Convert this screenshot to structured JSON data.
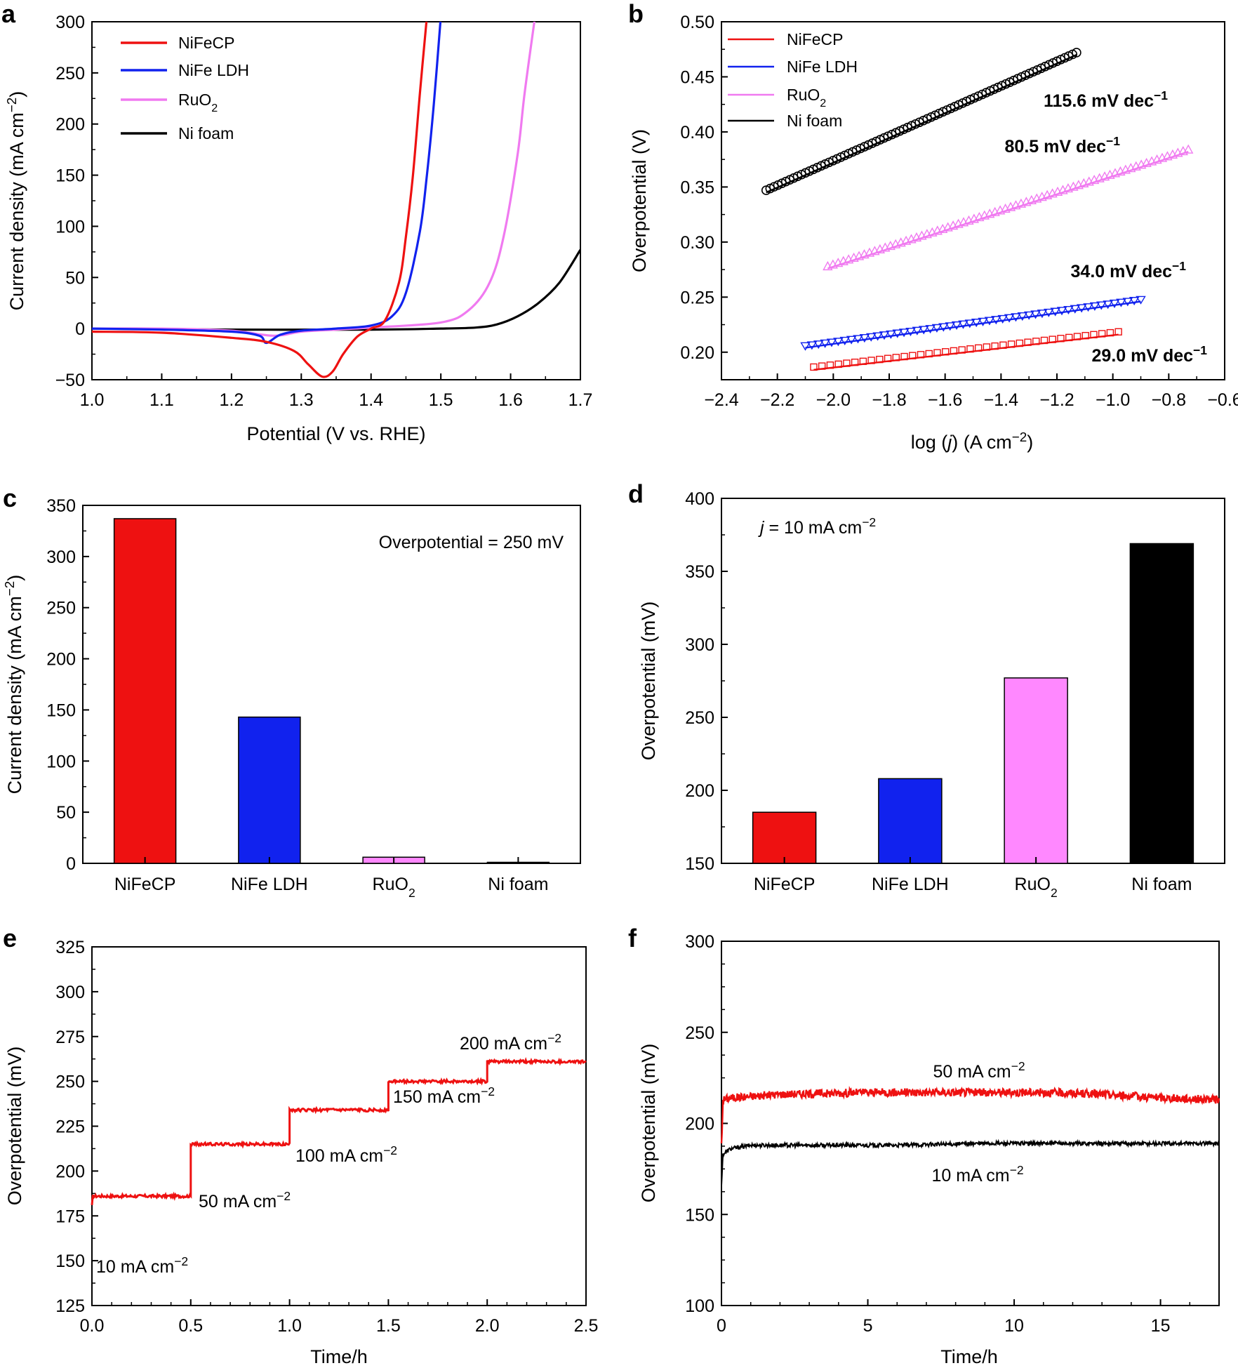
{
  "panel_letters": [
    "a",
    "b",
    "c",
    "d",
    "e",
    "f"
  ],
  "legend_labels": [
    "NiFeCP",
    "NiFe LDH",
    "RuO₂",
    "Ni foam"
  ],
  "colors": {
    "nifecp": "#ee1111",
    "nife_ldh": "#1122ee",
    "ruo2": "#f07af0",
    "ni_foam": "#000000",
    "tafel_nifecp_label": "#e53030",
    "tafel_ldh_label": "#2233aa",
    "tafel_ruo2_label": "#e070e0",
    "bar_ruo2": "#ff88ff"
  },
  "chart_data": [
    {
      "id": "a",
      "type": "line",
      "xlabel": "Potential (V vs. RHE)",
      "ylabel": "Current density (mA cm⁻²)",
      "xlim": [
        1.0,
        1.7
      ],
      "ylim": [
        -50,
        300
      ],
      "xticks": [
        "1.0",
        "1.1",
        "1.2",
        "1.3",
        "1.4",
        "1.5",
        "1.6",
        "1.7"
      ],
      "yticks": [
        "−50",
        "0",
        "50",
        "100",
        "150",
        "200",
        "250",
        "300"
      ],
      "series": [
        {
          "name": "NiFeCP",
          "x": [
            1.0,
            1.1,
            1.2,
            1.25,
            1.29,
            1.31,
            1.33,
            1.345,
            1.36,
            1.38,
            1.4,
            1.42,
            1.44,
            1.45,
            1.46,
            1.47,
            1.48
          ],
          "y": [
            -3,
            -4,
            -9,
            -13,
            -22,
            -35,
            -47,
            -42,
            -25,
            -8,
            0,
            8,
            45,
            90,
            150,
            230,
            305
          ]
        },
        {
          "name": "NiFe LDH",
          "x": [
            1.0,
            1.1,
            1.2,
            1.24,
            1.25,
            1.27,
            1.3,
            1.35,
            1.4,
            1.43,
            1.45,
            1.47,
            1.48,
            1.49,
            1.5
          ],
          "y": [
            0,
            -1,
            -3,
            -7,
            -14,
            -6,
            -2,
            0,
            3,
            12,
            35,
            95,
            150,
            220,
            305
          ]
        },
        {
          "name": "RuO₂",
          "x": [
            1.0,
            1.1,
            1.2,
            1.26,
            1.3,
            1.35,
            1.4,
            1.5,
            1.54,
            1.57,
            1.59,
            1.61,
            1.62,
            1.635
          ],
          "y": [
            0,
            0,
            -2,
            -7,
            -3,
            -1,
            1,
            6,
            18,
            45,
            90,
            170,
            230,
            305
          ]
        },
        {
          "name": "Ni foam",
          "x": [
            1.0,
            1.2,
            1.4,
            1.5,
            1.55,
            1.58,
            1.61,
            1.64,
            1.67,
            1.7
          ],
          "y": [
            0,
            -1,
            -1,
            0,
            1,
            4,
            12,
            25,
            45,
            77
          ]
        }
      ]
    },
    {
      "id": "b",
      "type": "scatter",
      "xlabel": "log (j) (A cm⁻²)",
      "ylabel": "Overpotential (V)",
      "xlim": [
        -2.4,
        -0.6
      ],
      "ylim": [
        0.175,
        0.5
      ],
      "xticks": [
        "−2.4",
        "−2.2",
        "−2.0",
        "−1.8",
        "−1.6",
        "−1.4",
        "−1.2",
        "−1.0",
        "−0.8",
        "−0.6"
      ],
      "yticks": [
        "0.20",
        "0.25",
        "0.30",
        "0.35",
        "0.40",
        "0.45",
        "0.50"
      ],
      "series": [
        {
          "name": "NiFeCP",
          "x_range": [
            -2.07,
            -0.98
          ],
          "y_range": [
            0.184,
            0.216
          ],
          "slope_label": "29.0 mV dec⁻¹"
        },
        {
          "name": "NiFe LDH",
          "x_range": [
            -2.1,
            -0.9
          ],
          "y_range": [
            0.204,
            0.246
          ],
          "slope_label": "34.0 mV dec⁻¹"
        },
        {
          "name": "RuO₂",
          "x_range": [
            -2.02,
            -0.73
          ],
          "y_range": [
            0.276,
            0.382
          ],
          "slope_label": "80.5 mV dec⁻¹"
        },
        {
          "name": "Ni foam",
          "x_range": [
            -2.24,
            -1.13
          ],
          "y_range": [
            0.345,
            0.47
          ],
          "slope_label": "115.6 mV dec⁻¹"
        }
      ]
    },
    {
      "id": "c",
      "type": "bar",
      "ylabel": "Current density (mA cm⁻²)",
      "annotation": "Overpotential = 250 mV",
      "categories": [
        "NiFeCP",
        "NiFe LDH",
        "RuO₂",
        "Ni foam"
      ],
      "values": [
        337,
        143,
        6,
        0.5
      ],
      "ylim": [
        0,
        350
      ],
      "yticks": [
        "0",
        "50",
        "100",
        "150",
        "200",
        "250",
        "300",
        "350"
      ]
    },
    {
      "id": "d",
      "type": "bar",
      "ylabel": "Overpotential (mV)",
      "annotation_italic": "j",
      "annotation_rest": " = 10 mA cm⁻²",
      "categories": [
        "NiFeCP",
        "NiFe LDH",
        "RuO₂",
        "Ni foam"
      ],
      "values": [
        185,
        208,
        277,
        369
      ],
      "ylim": [
        150,
        400
      ],
      "yticks": [
        "150",
        "200",
        "250",
        "300",
        "350",
        "400"
      ]
    },
    {
      "id": "e",
      "type": "line",
      "xlabel": "Time/h",
      "ylabel": "Overpotential (mV)",
      "xlim": [
        0,
        2.5
      ],
      "ylim": [
        125,
        325
      ],
      "xticks": [
        "0.0",
        "0.5",
        "1.0",
        "1.5",
        "2.0",
        "2.5"
      ],
      "yticks": [
        "125",
        "150",
        "175",
        "200",
        "225",
        "250",
        "275",
        "300",
        "325"
      ],
      "steps": [
        {
          "label": "10 mA cm⁻²",
          "t_start": 0.0,
          "t_end": 0.5,
          "value": 186
        },
        {
          "label": "50 mA cm⁻²",
          "t_start": 0.5,
          "t_end": 1.0,
          "value": 215
        },
        {
          "label": "100 mA cm⁻²",
          "t_start": 1.0,
          "t_end": 1.5,
          "value": 234
        },
        {
          "label": "150 mA cm⁻²",
          "t_start": 1.5,
          "t_end": 2.0,
          "value": 250
        },
        {
          "label": "200 mA cm⁻²",
          "t_start": 2.0,
          "t_end": 2.5,
          "value": 261
        }
      ]
    },
    {
      "id": "f",
      "type": "line",
      "xlabel": "Time/h",
      "ylabel": "Overpotential (mV)",
      "xlim": [
        0,
        17
      ],
      "ylim": [
        100,
        300
      ],
      "xticks": [
        "0",
        "5",
        "10",
        "15"
      ],
      "yticks": [
        "100",
        "150",
        "200",
        "250",
        "300"
      ],
      "series": [
        {
          "name": "50 mA cm⁻²",
          "x": [
            0,
            0.05,
            0.3,
            2,
            5,
            8,
            11,
            13,
            15,
            17
          ],
          "y": [
            195,
            213,
            214,
            216,
            217,
            217,
            217,
            216,
            214,
            213
          ]
        },
        {
          "name": "10 mA cm⁻²",
          "x": [
            0,
            0.05,
            0.3,
            1,
            3,
            6,
            9,
            12,
            15,
            17
          ],
          "y": [
            172,
            183,
            186,
            188,
            188,
            188,
            189,
            189,
            189,
            189
          ]
        }
      ]
    }
  ]
}
